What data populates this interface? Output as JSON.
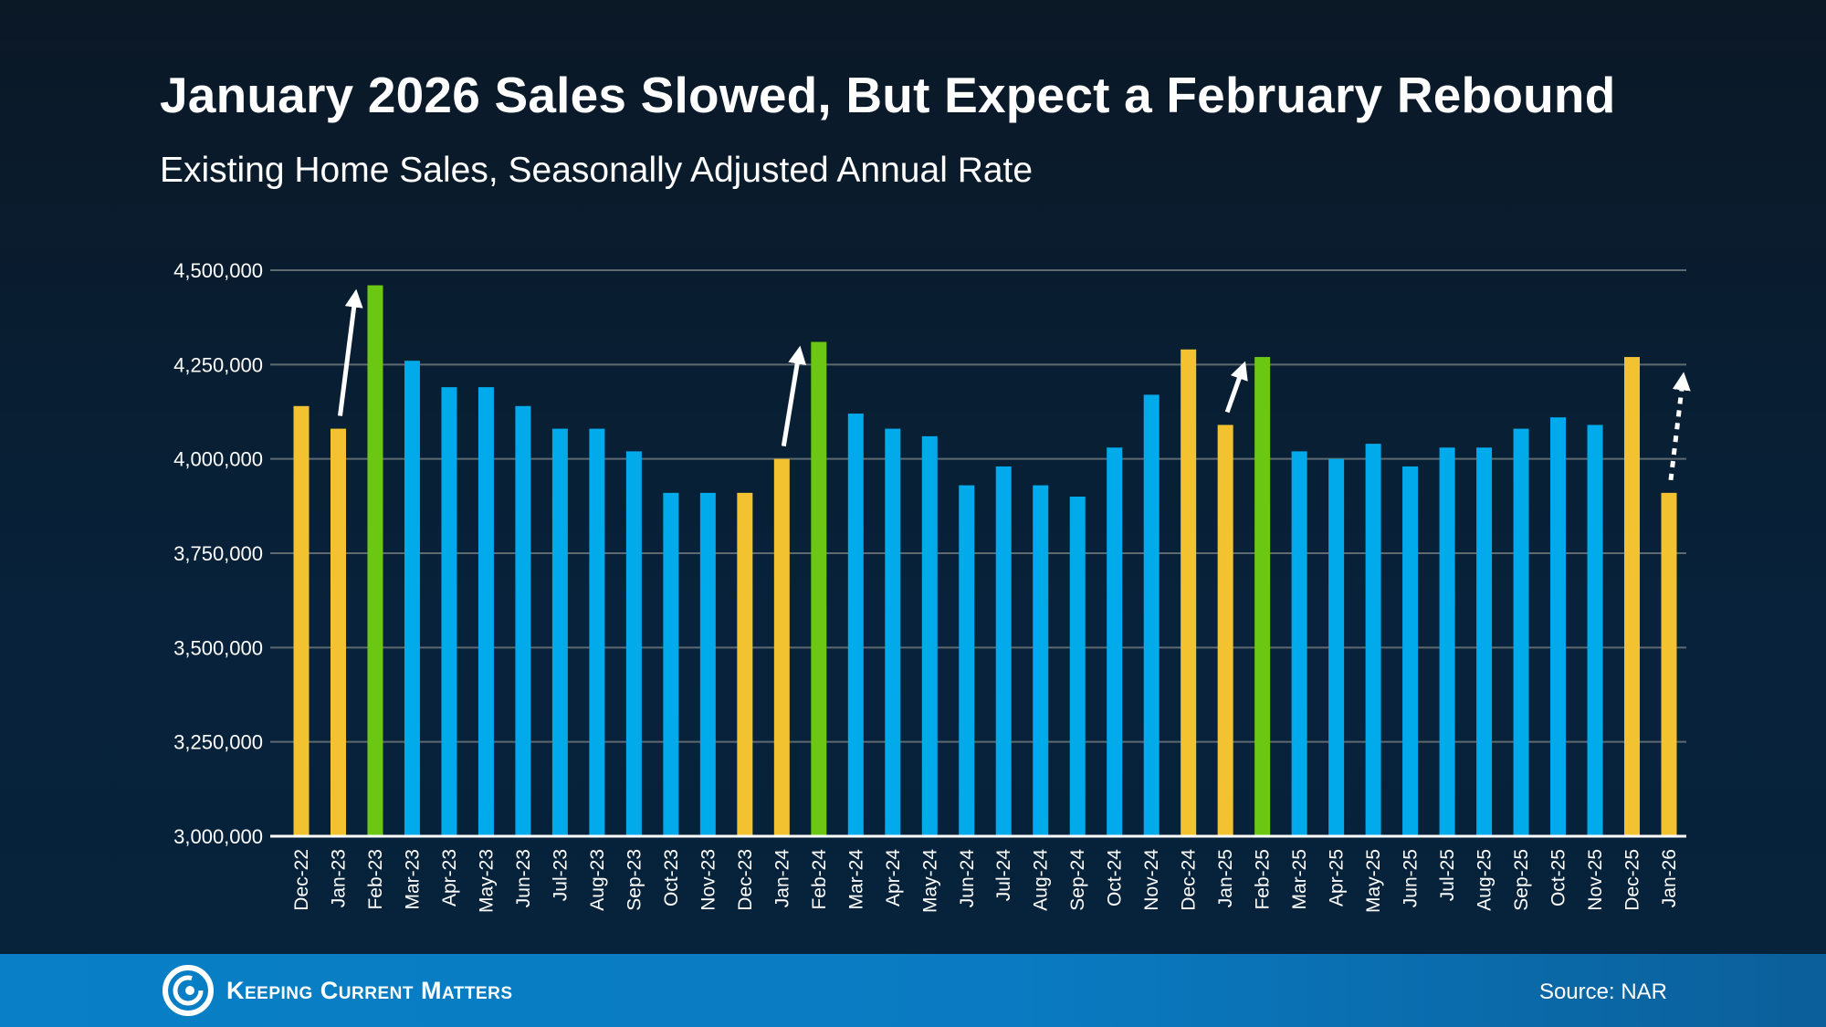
{
  "chart_data": {
    "type": "bar",
    "title": "January 2026 Sales Slowed, But Expect a February Rebound",
    "subtitle": "Existing Home Sales, Seasonally Adjusted Annual Rate",
    "xlabel": "",
    "ylabel": "",
    "ylim": [
      3000000,
      4500000
    ],
    "yticks": [
      3000000,
      3250000,
      3500000,
      3750000,
      4000000,
      4250000,
      4500000
    ],
    "ytick_labels": [
      "3,000,000",
      "3,250,000",
      "3,500,000",
      "3,750,000",
      "4,000,000",
      "4,250,000",
      "4,500,000"
    ],
    "grid": true,
    "categories": [
      "Dec-22",
      "Jan-23",
      "Feb-23",
      "Mar-23",
      "Apr-23",
      "May-23",
      "Jun-23",
      "Jul-23",
      "Aug-23",
      "Sep-23",
      "Oct-23",
      "Nov-23",
      "Dec-23",
      "Jan-24",
      "Feb-24",
      "Mar-24",
      "Apr-24",
      "May-24",
      "Jun-24",
      "Jul-24",
      "Aug-24",
      "Sep-24",
      "Oct-24",
      "Nov-24",
      "Dec-24",
      "Jan-25",
      "Feb-25",
      "Mar-25",
      "Apr-25",
      "May-25",
      "Jun-25",
      "Jul-25",
      "Aug-25",
      "Sep-25",
      "Oct-25",
      "Nov-25",
      "Dec-25",
      "Jan-26"
    ],
    "values": [
      4140000,
      4080000,
      4460000,
      4260000,
      4190000,
      4190000,
      4140000,
      4080000,
      4080000,
      4020000,
      3910000,
      3910000,
      3910000,
      4000000,
      4310000,
      4120000,
      4080000,
      4060000,
      3930000,
      3980000,
      3930000,
      3900000,
      4030000,
      4170000,
      4290000,
      4090000,
      4270000,
      4020000,
      4000000,
      4040000,
      3980000,
      4030000,
      4030000,
      4080000,
      4110000,
      4090000,
      4270000,
      3910000
    ],
    "bar_colors": [
      "yellow",
      "yellow",
      "green",
      "blue",
      "blue",
      "blue",
      "blue",
      "blue",
      "blue",
      "blue",
      "blue",
      "blue",
      "yellow",
      "yellow",
      "green",
      "blue",
      "blue",
      "blue",
      "blue",
      "blue",
      "blue",
      "blue",
      "blue",
      "blue",
      "yellow",
      "yellow",
      "green",
      "blue",
      "blue",
      "blue",
      "blue",
      "blue",
      "blue",
      "blue",
      "blue",
      "blue",
      "yellow",
      "yellow"
    ],
    "palette": {
      "yellow": "#F2C230",
      "blue": "#00AAEB",
      "green": "#6CC714",
      "grid": "#5f6a70",
      "arrow": "#FFFFFF"
    },
    "annotations": [
      {
        "type": "arrow",
        "from": "Jan-23",
        "to": "Feb-23",
        "style": "solid"
      },
      {
        "type": "arrow",
        "from": "Jan-24",
        "to": "Feb-24",
        "style": "solid"
      },
      {
        "type": "arrow",
        "from": "Jan-25",
        "to": "Feb-25",
        "style": "solid"
      },
      {
        "type": "arrow",
        "from": "Jan-26",
        "to_value": 4250000,
        "style": "dotted"
      }
    ]
  },
  "footer": {
    "brand": "Keeping Current Matters",
    "source": "Source: NAR"
  }
}
